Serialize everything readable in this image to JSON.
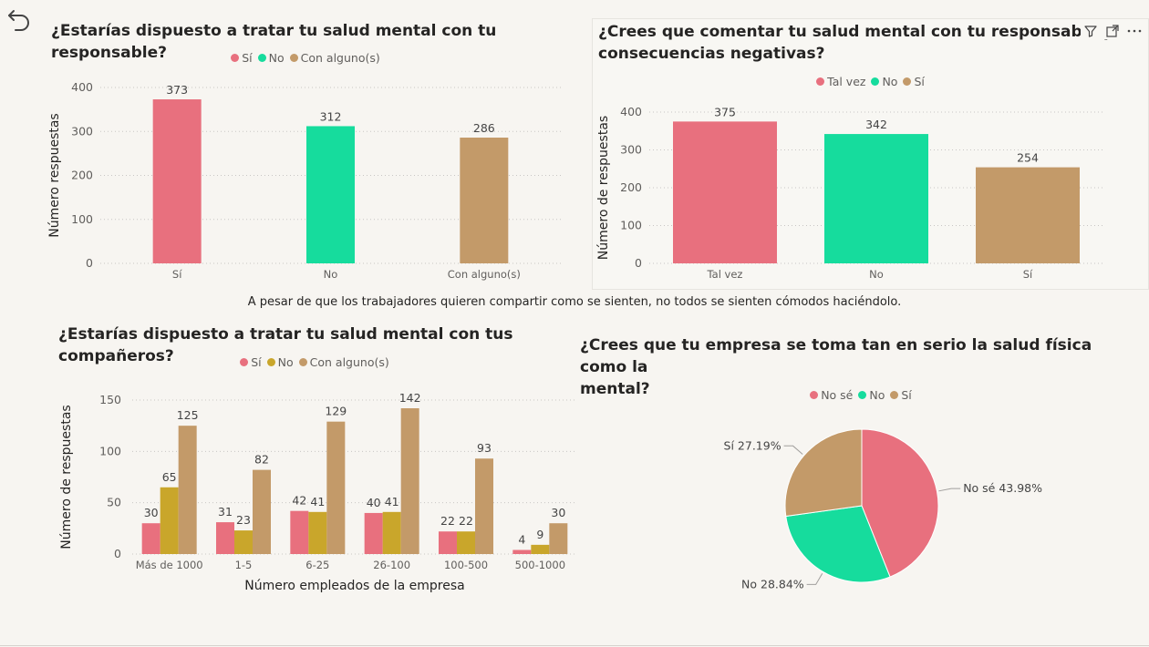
{
  "caption": "A pesar de que los trabajadores quieren compartir como se sienten, no todos se sienten cómodos haciéndolo.",
  "header_icons": [
    "filter-icon",
    "focus-mode-icon",
    "more-options-icon"
  ],
  "chart_data": [
    {
      "type": "bar",
      "title": "¿Estarías dispuesto a tratar tu salud mental con tu responsable?",
      "ylabel": "Número respuestas",
      "xlabel": "",
      "categories": [
        "Sí",
        "No",
        "Con alguno(s)"
      ],
      "values": [
        373,
        312,
        286
      ],
      "colors": [
        "#e8707e",
        "#16dc9d",
        "#c39a69"
      ],
      "legend": [
        "Sí",
        "No",
        "Con alguno(s)"
      ],
      "ylim": [
        0,
        400
      ],
      "yticks": [
        0,
        100,
        200,
        300,
        400
      ],
      "grid": true,
      "legend_position": "top-center"
    },
    {
      "type": "bar",
      "title": "¿Crees que comentar tu salud mental con tu responsable podría tener consecuencias negativas?",
      "title_visible": [
        "¿Crees que comentar tu salud mental con tu responsable podrí",
        "consecuencias negativas?"
      ],
      "ylabel": "Número de respuestas",
      "xlabel": "",
      "categories": [
        "Tal vez",
        "No",
        "Sí"
      ],
      "values": [
        375,
        342,
        254
      ],
      "colors": [
        "#e8707e",
        "#16dc9d",
        "#c39a69"
      ],
      "legend": [
        "Tal vez",
        "No",
        "Sí"
      ],
      "ylim": [
        0,
        400
      ],
      "yticks": [
        0,
        100,
        200,
        300,
        400
      ],
      "grid": true,
      "legend_position": "top-center"
    },
    {
      "type": "bar",
      "title": "¿Estarías dispuesto a tratar tu salud mental con tus compañeros?",
      "ylabel": "Número de respuestas",
      "xlabel": "Número empleados de la empresa",
      "categories": [
        "Más de 1000",
        "1-5",
        "6-25",
        "26-100",
        "100-500",
        "500-1000"
      ],
      "series": [
        {
          "name": "Sí",
          "values": [
            30,
            31,
            42,
            40,
            22,
            4
          ],
          "color": "#e8707e"
        },
        {
          "name": "No",
          "values": [
            65,
            23,
            41,
            41,
            22,
            9
          ],
          "color": "#c9a62b"
        },
        {
          "name": "Con alguno(s)",
          "values": [
            125,
            82,
            129,
            142,
            93,
            30
          ],
          "color": "#c39a69"
        }
      ],
      "ylim": [
        0,
        150
      ],
      "yticks": [
        0,
        50,
        100,
        150
      ],
      "grid": true,
      "legend_position": "top-center"
    },
    {
      "type": "pie",
      "title": "¿Crees que tu empresa se toma tan en serio la salud física como la mental?",
      "title_lines": [
        "¿Crees que tu empresa se toma tan en serio la salud física como la",
        "mental?"
      ],
      "slices": [
        {
          "label": "No sé",
          "value": 43.98,
          "display": "No sé 43.98%",
          "color": "#e8707e"
        },
        {
          "label": "No",
          "value": 28.84,
          "display": "No 28.84%",
          "color": "#16dc9d"
        },
        {
          "label": "Sí",
          "value": 27.19,
          "display": "Sí 27.19%",
          "color": "#c39a69"
        }
      ],
      "legend": [
        "No sé",
        "No",
        "Sí"
      ],
      "legend_position": "top-center"
    }
  ]
}
